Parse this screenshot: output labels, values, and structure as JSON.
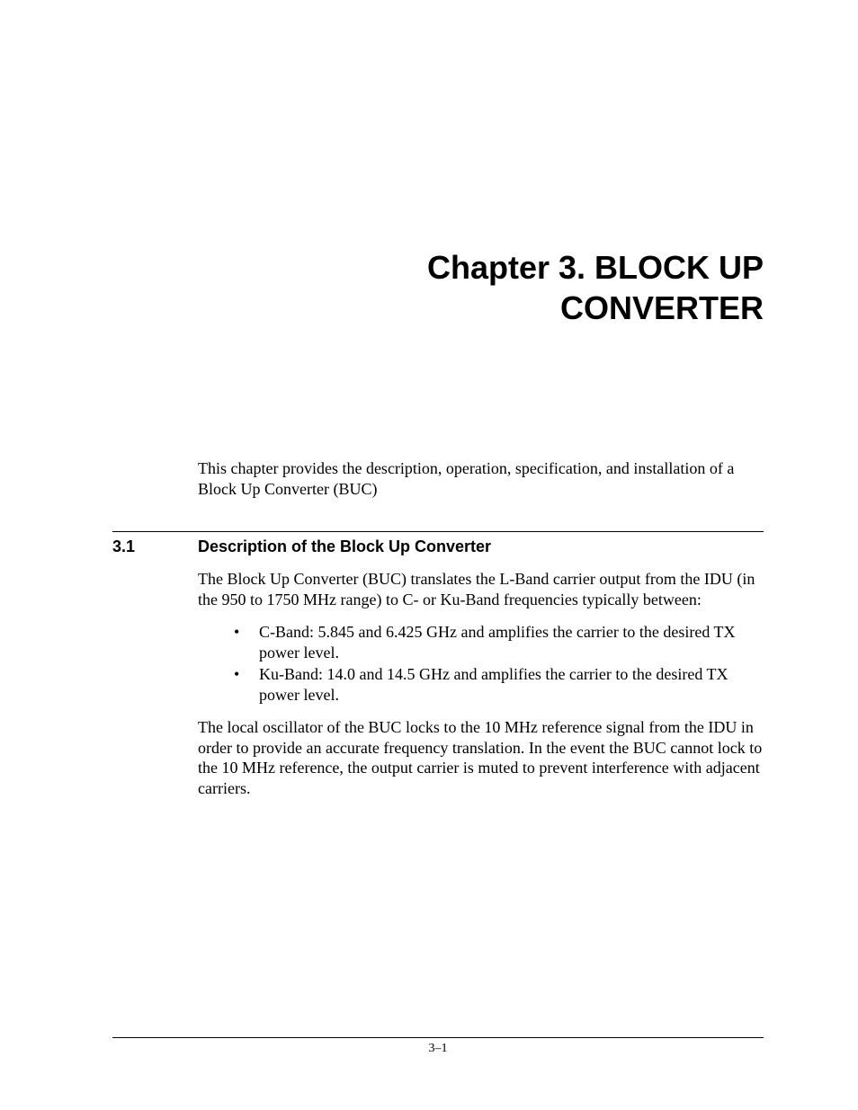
{
  "chapter": {
    "title_line1": "Chapter 3. BLOCK UP",
    "title_line2": "CONVERTER"
  },
  "intro": {
    "text": "This chapter provides the description, operation, specification, and installation of a Block Up Converter (BUC)"
  },
  "section": {
    "number": "3.1",
    "title": "Description of the Block Up Converter",
    "para1": "The Block Up Converter (BUC) translates the L-Band carrier output from the IDU (in the 950 to 1750 MHz range) to C- or Ku-Band frequencies typically between:",
    "bullets": {
      "0": "C-Band:  5.845 and 6.425 GHz and amplifies the carrier to the desired TX power level.",
      "1": "Ku-Band:  14.0 and 14.5 GHz and amplifies the carrier to the desired TX power level."
    },
    "para2": "The local oscillator of the BUC locks to the 10 MHz reference signal from the IDU in order to provide an accurate frequency translation. In the event the BUC cannot lock to the 10 MHz reference, the output carrier is muted to prevent interference with adjacent carriers."
  },
  "footer": {
    "page_number": "3–1"
  },
  "styling": {
    "background_color": "#ffffff",
    "text_color": "#000000",
    "heading_font": "Arial",
    "body_font": "Times New Roman",
    "chapter_title_fontsize": 36,
    "section_title_fontsize": 18,
    "body_fontsize": 18,
    "page_number_fontsize": 14,
    "rule_color": "#000000"
  }
}
